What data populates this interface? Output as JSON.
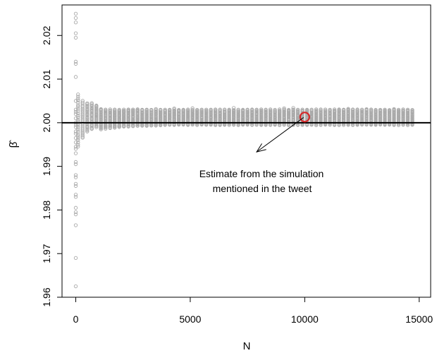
{
  "chart_data": {
    "type": "scatter",
    "title": "",
    "xlabel": "N",
    "ylabel": "β̂",
    "xlim": [
      -600,
      15500
    ],
    "ylim": [
      1.96,
      2.027
    ],
    "x_ticks": [
      0,
      5000,
      10000,
      15000
    ],
    "x_tick_labels": [
      "0",
      "5000",
      "10000",
      "15000"
    ],
    "y_ticks": [
      1.96,
      1.97,
      1.98,
      1.99,
      2.0,
      2.01,
      2.02
    ],
    "y_tick_labels": [
      "1.96",
      "1.97",
      "1.98",
      "1.99",
      "2.00",
      "2.01",
      "2.02"
    ],
    "grid": false,
    "reference_line": {
      "y": 2.0,
      "color": "#000000"
    },
    "point_color": "#aaaaaa",
    "highlight_color": "#d62728",
    "series": [
      {
        "x": [
          0,
          0,
          0,
          0,
          0,
          0,
          0,
          0,
          0,
          0,
          0,
          0,
          0,
          0,
          0,
          0,
          0,
          0,
          0,
          0,
          0,
          0,
          0,
          0,
          0,
          0,
          0,
          0,
          0,
          0,
          0,
          0,
          0,
          0,
          0,
          0,
          0
        ],
        "y": [
          2.025,
          2.024,
          2.023,
          2.0205,
          2.0195,
          2.014,
          2.0135,
          2.0105,
          2.005,
          2.002,
          2.001,
          2.0,
          1.9995,
          1.999,
          1.998,
          1.9975,
          1.9945,
          1.994,
          1.9905,
          1.988,
          1.9875,
          1.986,
          1.9855,
          1.9835,
          1.983,
          1.9795,
          1.979,
          1.9765,
          1.969,
          1.9625,
          2.003,
          2.0025,
          1.9965,
          1.9955,
          1.993,
          1.991,
          1.9805
        ]
      }
    ],
    "band": {
      "x_start": 100,
      "x_end": 14800,
      "x_step": 200,
      "early": {
        "N": [
          100,
          300,
          500,
          700,
          900
        ],
        "upper": [
          2.0065,
          2.005,
          2.0045,
          2.0045,
          2.004
        ],
        "lower": [
          1.9945,
          1.9965,
          1.998,
          1.9985,
          1.999
        ]
      },
      "late_upper": 2.003,
      "late_lower": 1.9995,
      "spread_constant": 0.0013,
      "highlight": {
        "x": 10000,
        "y": 2.0013
      }
    },
    "annotations": [
      {
        "text_lines": [
          "Estimate from the simulation",
          "mentioned in the tweet"
        ],
        "arrow_from": [
          7900,
          1.9933
        ],
        "arrow_to": [
          9950,
          2.0012
        ]
      }
    ]
  }
}
